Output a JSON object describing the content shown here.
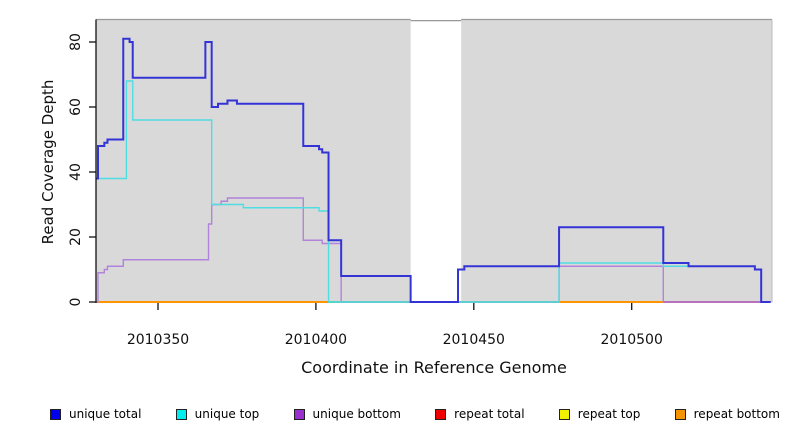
{
  "chart_data": {
    "type": "line",
    "subtype": "step-coverage-plot",
    "x_axis": {
      "label": "Coordinate in Reference Genome",
      "ticks": [
        2010350,
        2010400,
        2010450,
        2010500
      ],
      "range": [
        2010330,
        2010544
      ]
    },
    "y_axis": {
      "label": "Read Coverage Depth",
      "ticks": [
        0,
        20,
        40,
        60,
        80
      ],
      "range": [
        0,
        87
      ]
    },
    "plot_background": "#d9d9d9",
    "grid": "off",
    "masked_region": {
      "x_start": 2010430,
      "x_end": 2010446,
      "color": "#ffffff"
    },
    "series": [
      {
        "name": "unique total",
        "color": "#3434d6",
        "width": 2,
        "end": 2010544,
        "points": [
          [
            2010330,
            38
          ],
          [
            2010331,
            48
          ],
          [
            2010333,
            49
          ],
          [
            2010334,
            50
          ],
          [
            2010339,
            81
          ],
          [
            2010341,
            80
          ],
          [
            2010342,
            69
          ],
          [
            2010365,
            80
          ],
          [
            2010367,
            60
          ],
          [
            2010369,
            61
          ],
          [
            2010372,
            62
          ],
          [
            2010375,
            61
          ],
          [
            2010396,
            48
          ],
          [
            2010401,
            47
          ],
          [
            2010402,
            46
          ],
          [
            2010404,
            19
          ],
          [
            2010408,
            8
          ],
          [
            2010430,
            0
          ],
          [
            2010445,
            10
          ],
          [
            2010447,
            11
          ],
          [
            2010477,
            23
          ],
          [
            2010510,
            12
          ],
          [
            2010518,
            11
          ],
          [
            2010539,
            10
          ],
          [
            2010541,
            0
          ]
        ]
      },
      {
        "name": "unique top",
        "color": "#4fdde2",
        "width": 1.4,
        "end": 2010544,
        "points": [
          [
            2010330,
            38
          ],
          [
            2010340,
            68
          ],
          [
            2010342,
            56
          ],
          [
            2010367,
            30
          ],
          [
            2010377,
            29
          ],
          [
            2010401,
            28
          ],
          [
            2010404,
            0
          ],
          [
            2010477,
            12
          ],
          [
            2010510,
            11
          ],
          [
            2010539,
            10
          ],
          [
            2010541,
            0
          ]
        ]
      },
      {
        "name": "unique bottom",
        "color": "#b183da",
        "width": 1.4,
        "end": 2010544,
        "points": [
          [
            2010330,
            0
          ],
          [
            2010331,
            9
          ],
          [
            2010333,
            10
          ],
          [
            2010334,
            11
          ],
          [
            2010339,
            13
          ],
          [
            2010366,
            24
          ],
          [
            2010367,
            30
          ],
          [
            2010370,
            31
          ],
          [
            2010372,
            32
          ],
          [
            2010396,
            19
          ],
          [
            2010402,
            18
          ],
          [
            2010408,
            0
          ],
          [
            2010477,
            11
          ],
          [
            2010510,
            0
          ]
        ]
      }
    ],
    "zero_line_segments": [
      {
        "series": "repeat bottom",
        "color": "#ff9300",
        "x_start": 2010330,
        "x_end": 2010404
      },
      {
        "series": "baseline",
        "color": "#6abf69",
        "x_start": 2010404,
        "x_end": 2010477
      },
      {
        "series": "repeat bottom",
        "color": "#ff9300",
        "x_start": 2010477,
        "x_end": 2010510
      },
      {
        "series": "repeat total",
        "color": "#c8415f",
        "x_start": 2010510,
        "x_end": 2010544
      }
    ],
    "legend": [
      {
        "label": "unique total",
        "color": "#0000ee"
      },
      {
        "label": "unique top",
        "color": "#00eeee"
      },
      {
        "label": "unique bottom",
        "color": "#9b30d0"
      },
      {
        "label": "repeat total",
        "color": "#ee0000"
      },
      {
        "label": "repeat top",
        "color": "#f2f200"
      },
      {
        "label": "repeat bottom",
        "color": "#f59300"
      }
    ],
    "legend_position": "bottom"
  }
}
